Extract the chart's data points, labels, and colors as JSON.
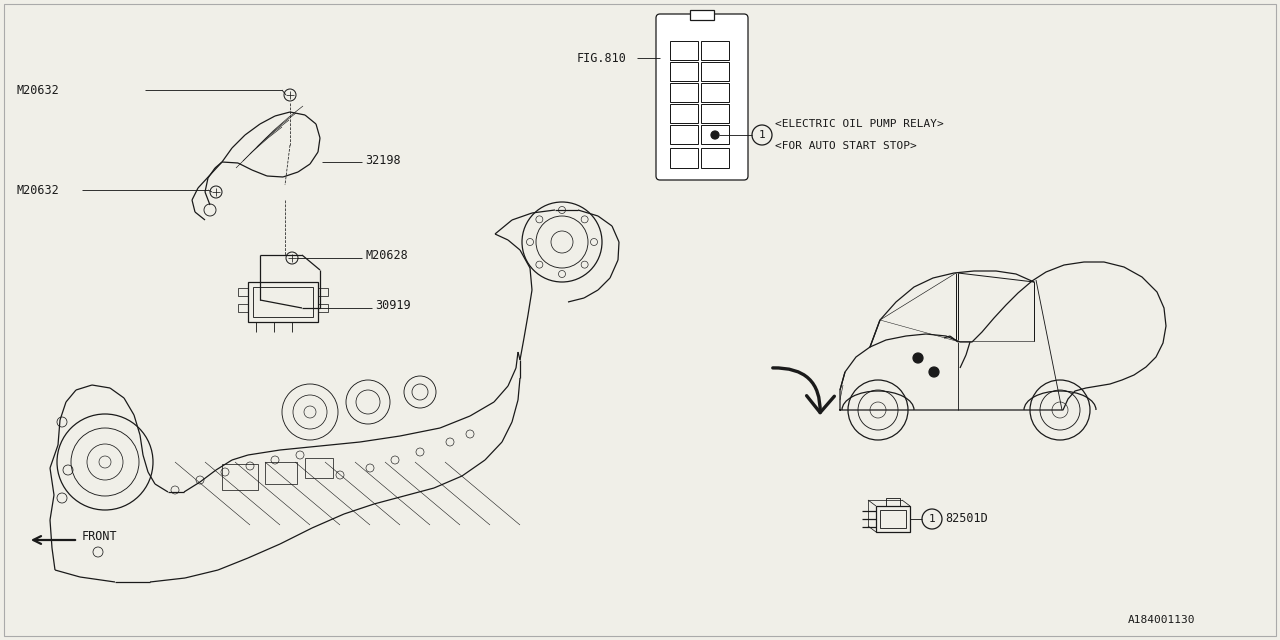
{
  "bg_color": "#f0efe8",
  "line_color": "#1a1a1a",
  "fig_width": 12.8,
  "fig_height": 6.4,
  "labels": {
    "M20632_top": "M20632",
    "M20632_mid": "M20632",
    "M20628": "M20628",
    "part_32198": "32198",
    "part_30919": "30919",
    "fig_810": "FIG.810",
    "relay_label1": "<ELECTRIC OIL PUMP RELAY>",
    "relay_label2": "<FOR AUTO START STOP>",
    "part_82501D": "82501D",
    "front_label": "FRONT",
    "diagram_id": "A184001130"
  },
  "font_family": "monospace",
  "label_fontsize": 8.5
}
